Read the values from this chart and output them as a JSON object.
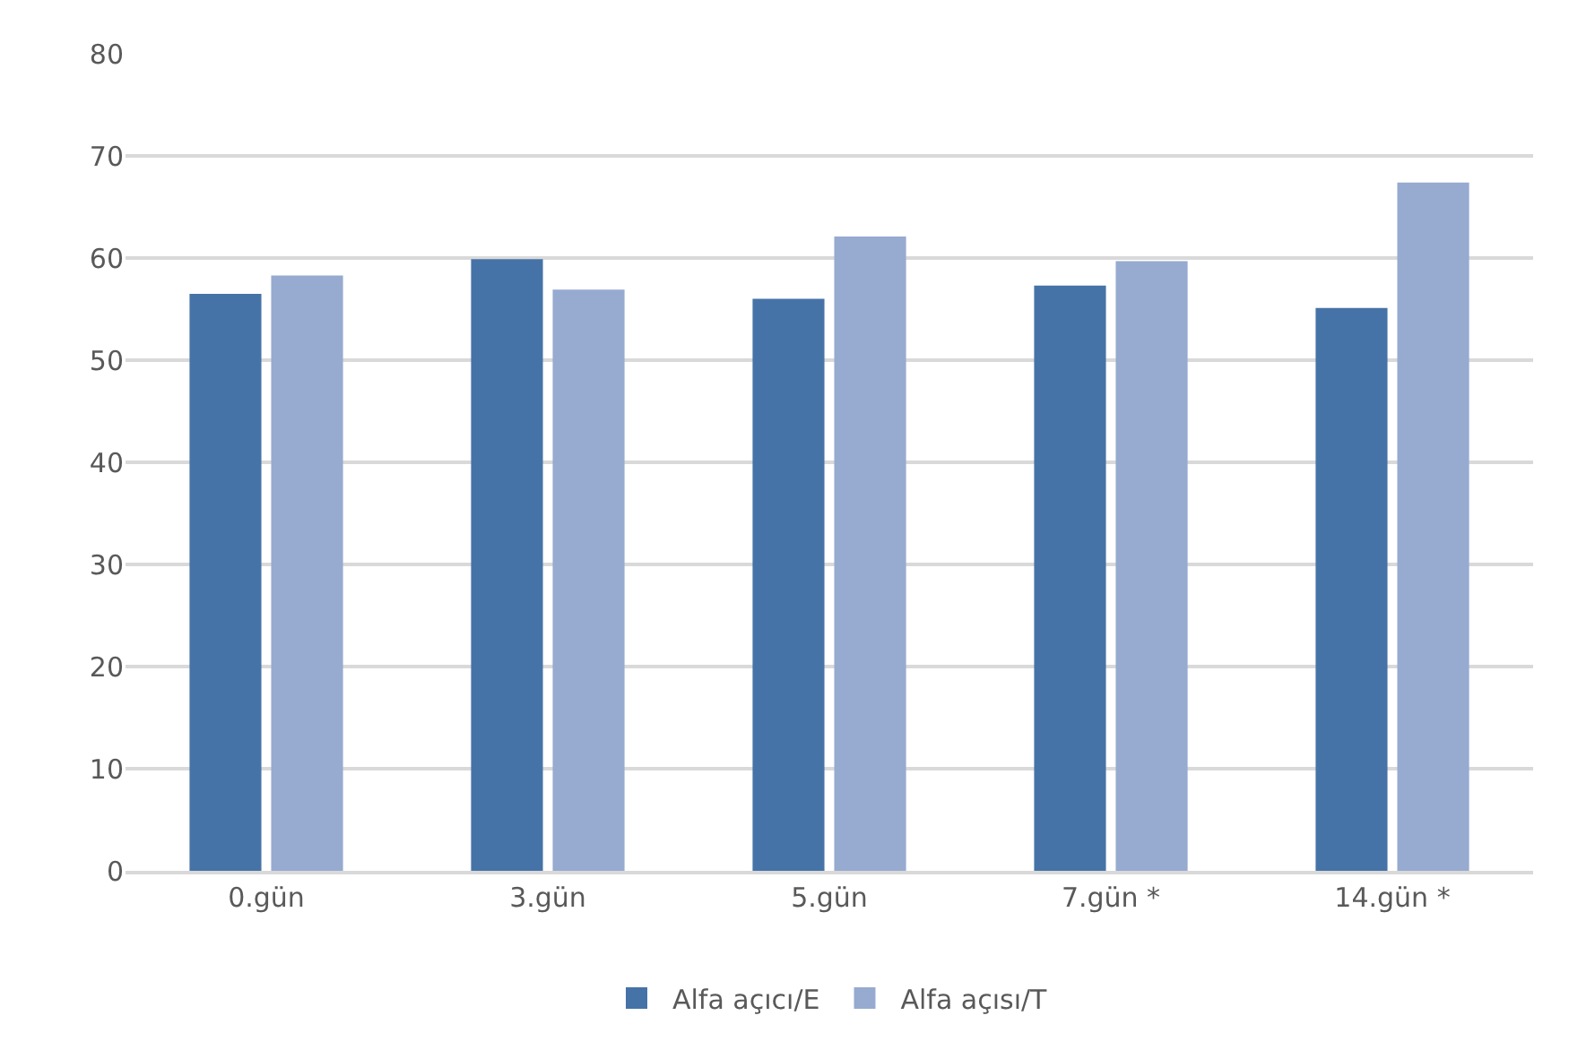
{
  "chart_data": {
    "type": "bar",
    "categories": [
      "0.gün",
      "3.gün",
      "5.gün",
      "7.gün *",
      "14.gün *"
    ],
    "series": [
      {
        "name": "Alfa açıcı/E",
        "color": "#4673a7",
        "values": [
          56.5,
          59.9,
          56.0,
          57.3,
          55.1
        ]
      },
      {
        "name": "Alfa açısı/T",
        "color": "#97aad0",
        "values": [
          58.3,
          56.9,
          62.1,
          59.7,
          67.4
        ]
      }
    ],
    "ylim": [
      0,
      80
    ],
    "yticks": [
      0,
      10,
      20,
      30,
      40,
      50,
      60,
      70,
      80
    ],
    "grid": "y",
    "legend": "bottom"
  }
}
